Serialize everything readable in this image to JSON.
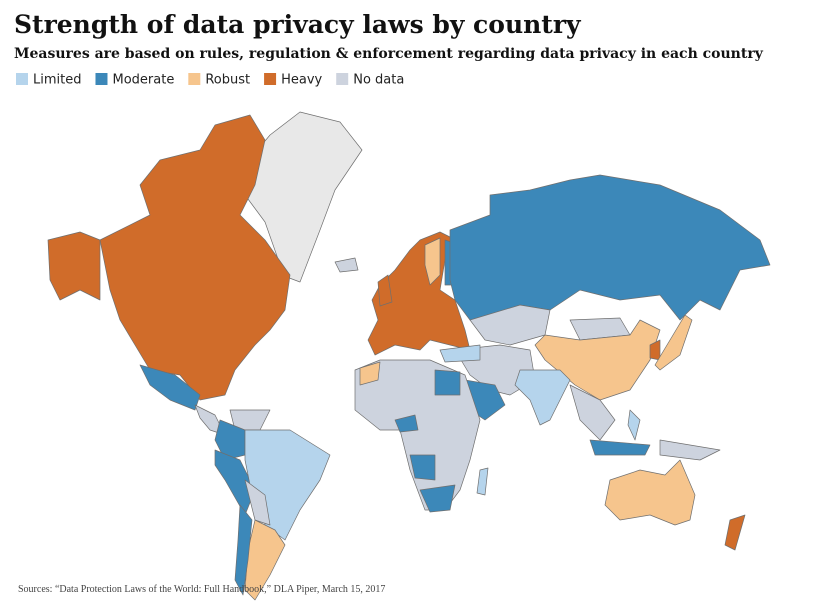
{
  "header": {
    "title": "Strength of data privacy laws by country",
    "subtitle": "Measures are based on rules, regulation & enforcement regarding data privacy in each country"
  },
  "legend": [
    {
      "label": "Limited",
      "color": "#b5d4ec"
    },
    {
      "label": "Moderate",
      "color": "#3c88b9"
    },
    {
      "label": "Robust",
      "color": "#f6c58d"
    },
    {
      "label": "Heavy",
      "color": "#d06c2a"
    },
    {
      "label": "No data",
      "color": "#cdd3de"
    }
  ],
  "source": "Sources: “Data Protection Laws of the World: Full Handbook,” DLA Piper, March 15, 2017"
}
